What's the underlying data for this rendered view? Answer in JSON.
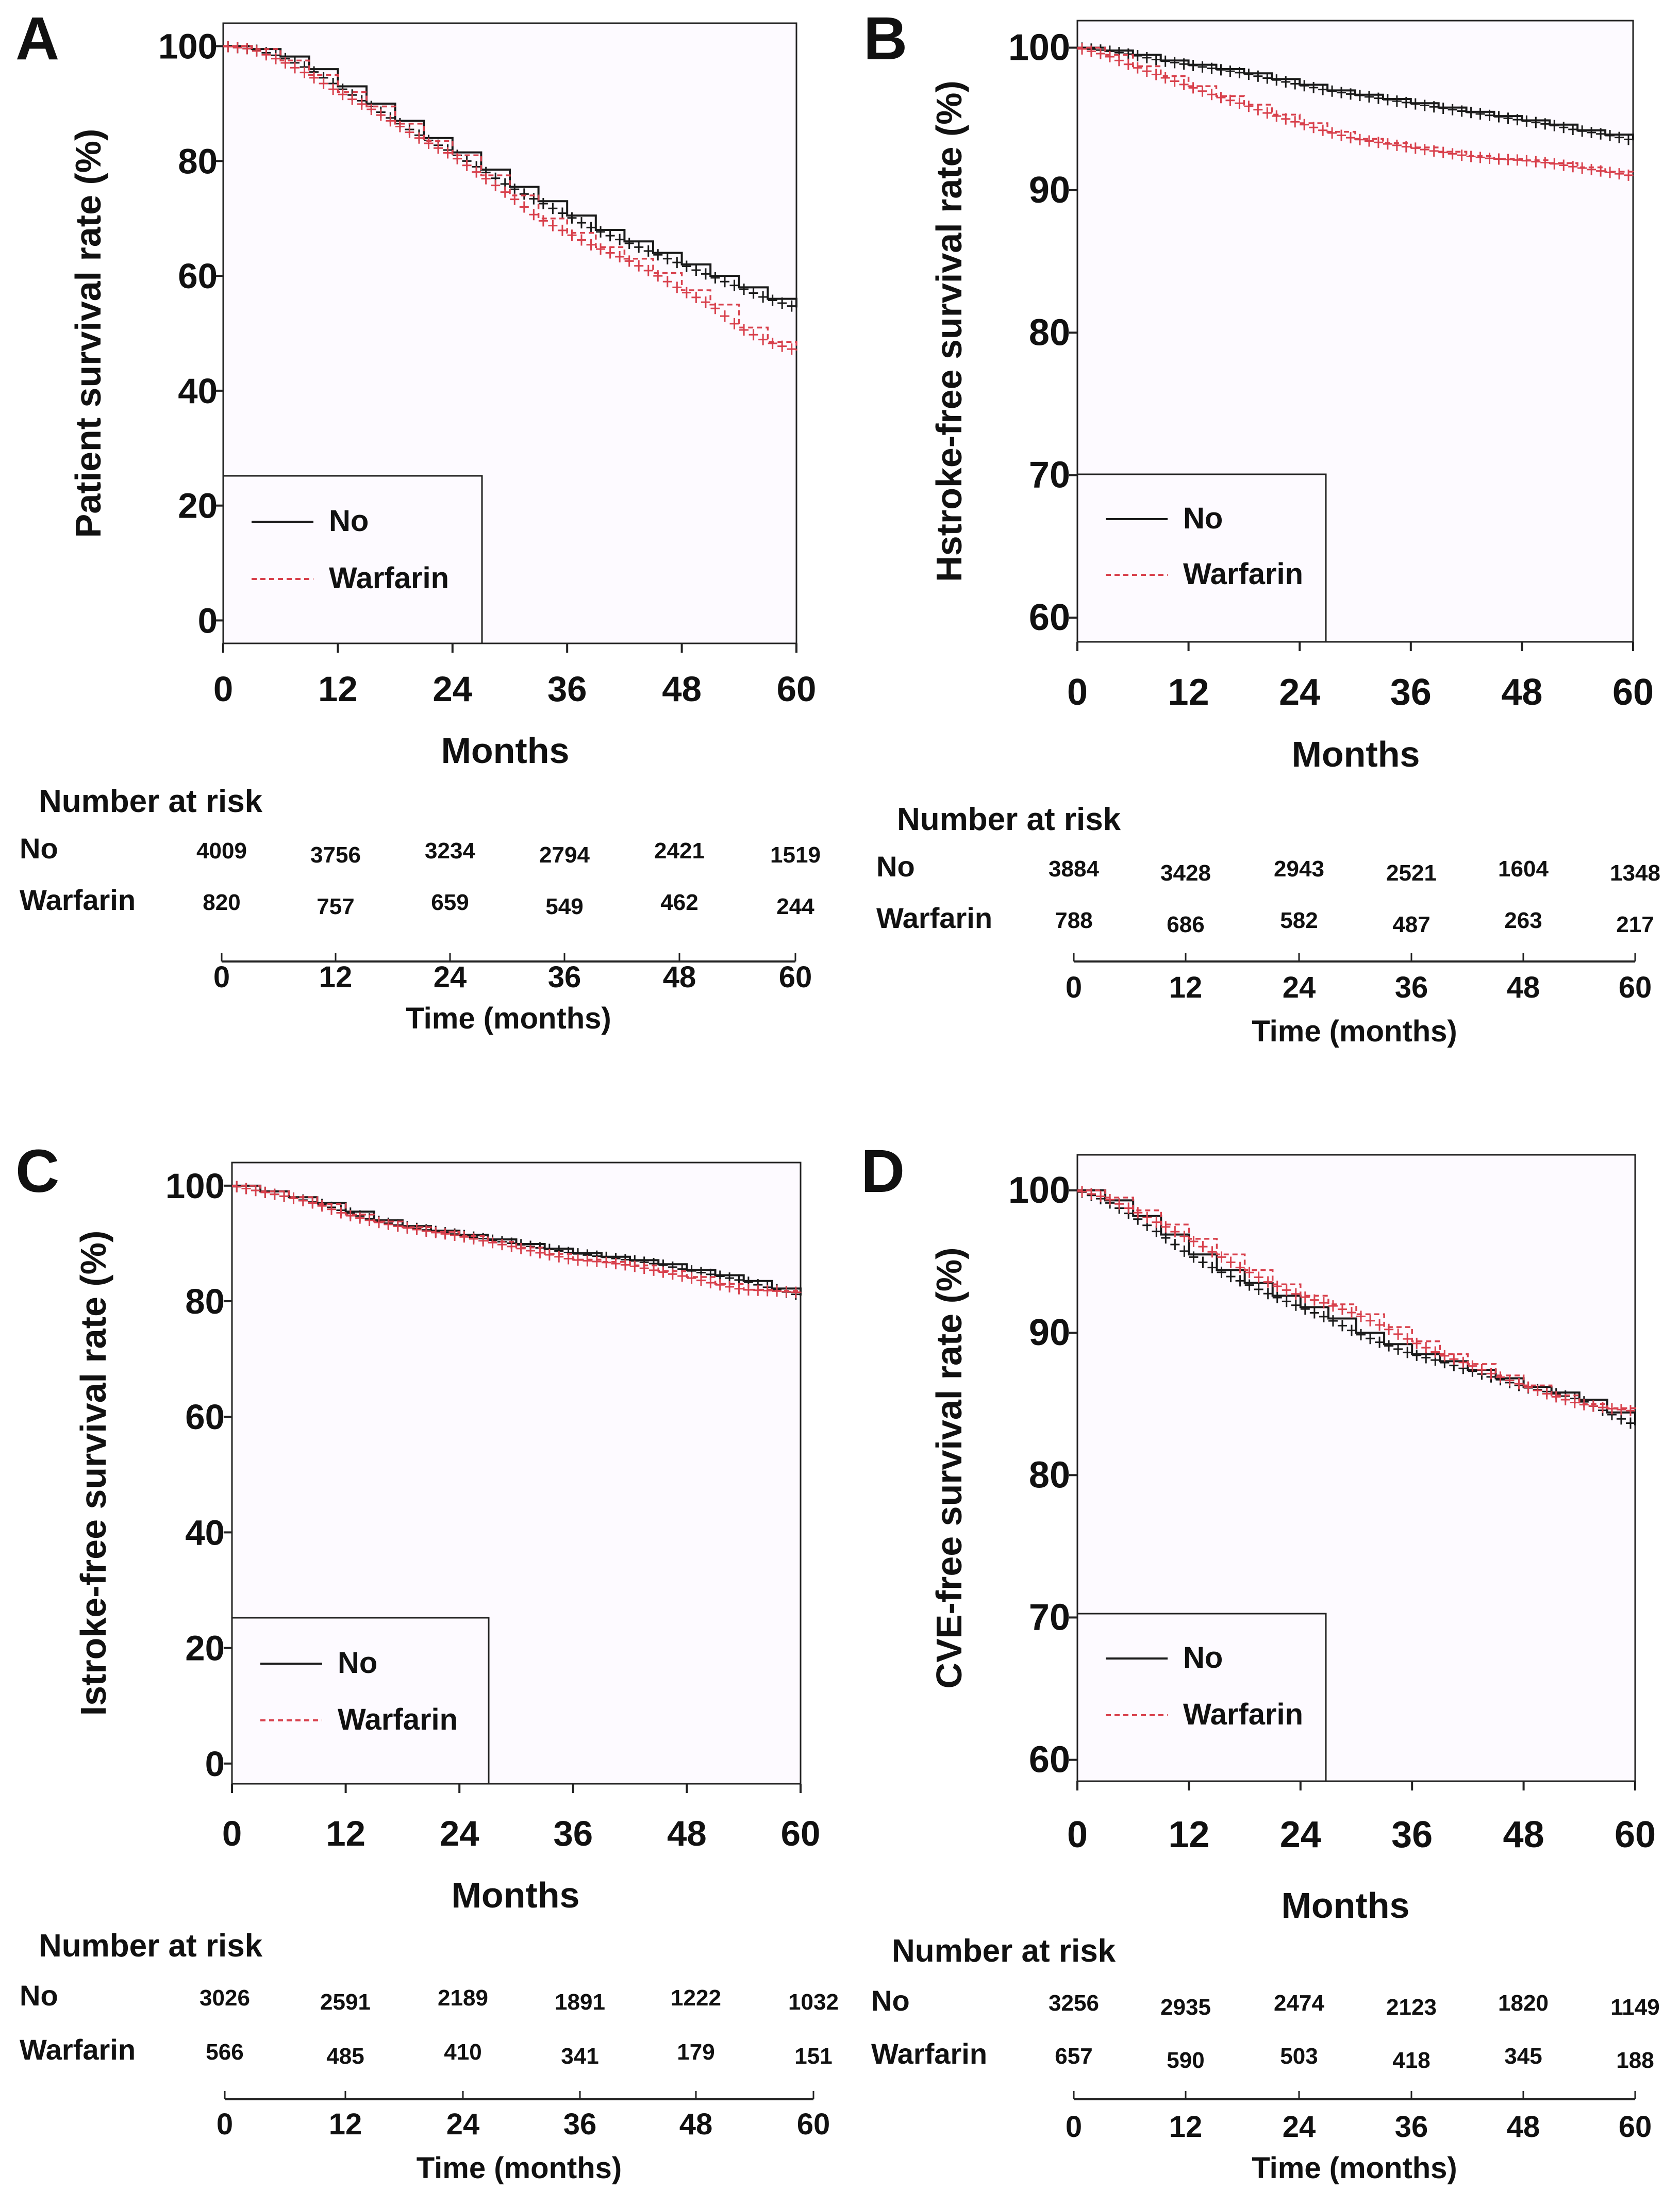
{
  "figure": {
    "colors": {
      "no": "#1a1a1a",
      "warfarin": "#d8404c",
      "plot_bg": "#fdfaff",
      "axis": "#222222"
    },
    "risk_title": "Number at risk",
    "risk_xlabel": "Time (months)"
  },
  "chart_data": [
    {
      "panel": "A",
      "type": "line",
      "title": "",
      "xlabel": "Months",
      "ylabel": "Patient survival rate (%)",
      "xlim": [
        0,
        60
      ],
      "ylim": [
        -4,
        104
      ],
      "xticks": [
        0,
        12,
        24,
        36,
        48,
        60
      ],
      "yticks": [
        0,
        20,
        40,
        60,
        80,
        100
      ],
      "legend": "bottom-left",
      "series": [
        {
          "name": "No",
          "style": "solid",
          "x": [
            0,
            3,
            6,
            9,
            12,
            15,
            18,
            21,
            24,
            27,
            30,
            33,
            36,
            39,
            42,
            45,
            48,
            51,
            54,
            57,
            60
          ],
          "values": [
            100,
            99.5,
            98.2,
            96,
            93,
            90,
            87,
            84,
            81.5,
            78.5,
            75.5,
            73,
            70.5,
            68,
            66,
            64,
            62,
            60,
            58,
            56,
            54.5
          ]
        },
        {
          "name": "Warfarin",
          "style": "dashed",
          "x": [
            0,
            3,
            6,
            9,
            12,
            15,
            18,
            21,
            24,
            27,
            30,
            33,
            36,
            39,
            42,
            45,
            48,
            51,
            54,
            57,
            60
          ],
          "values": [
            100,
            99.5,
            97.5,
            95,
            92,
            89.5,
            86.5,
            83.5,
            81,
            77.5,
            74,
            70,
            67.5,
            65,
            63,
            60.5,
            57.5,
            55,
            51,
            48.5,
            47
          ]
        }
      ],
      "risk_table": {
        "times": [
          "0",
          "12",
          "24",
          "36",
          "48",
          "60"
        ],
        "rows": [
          {
            "label": "No",
            "values": [
              "4009",
              "3756",
              "3234",
              "2794",
              "2421",
              "1519"
            ]
          },
          {
            "label": "Warfarin",
            "values": [
              "820",
              "757",
              "659",
              "549",
              "462",
              "244"
            ]
          }
        ]
      }
    },
    {
      "panel": "B",
      "type": "line",
      "title": "",
      "xlabel": "Months",
      "ylabel": "Hstroke-free survival rate (%)",
      "xlim": [
        0,
        60
      ],
      "ylim": [
        58.3,
        101.9
      ],
      "xticks": [
        0,
        12,
        24,
        36,
        48,
        60
      ],
      "yticks": [
        60,
        70,
        80,
        90,
        100
      ],
      "legend": "bottom-left",
      "series": [
        {
          "name": "No",
          "style": "solid",
          "x": [
            0,
            3,
            6,
            9,
            12,
            15,
            18,
            21,
            24,
            27,
            30,
            33,
            36,
            39,
            42,
            45,
            48,
            51,
            54,
            57,
            60
          ],
          "values": [
            100,
            99.8,
            99.5,
            99.1,
            98.8,
            98.5,
            98.2,
            97.8,
            97.4,
            97,
            96.7,
            96.4,
            96.1,
            95.8,
            95.5,
            95.2,
            94.9,
            94.6,
            94.2,
            93.9,
            93.5
          ]
        },
        {
          "name": "Warfarin",
          "style": "dashed",
          "x": [
            0,
            3,
            6,
            9,
            12,
            15,
            18,
            21,
            24,
            27,
            30,
            33,
            36,
            39,
            42,
            45,
            48,
            51,
            54,
            57,
            60
          ],
          "values": [
            100,
            99.5,
            98.7,
            98,
            97.3,
            96.6,
            96,
            95.3,
            94.7,
            94.1,
            93.6,
            93.3,
            93,
            92.7,
            92.4,
            92.2,
            92.1,
            91.9,
            91.6,
            91.3,
            91
          ]
        }
      ],
      "risk_table": {
        "times": [
          "0",
          "12",
          "24",
          "36",
          "48",
          "60"
        ],
        "rows": [
          {
            "label": "No",
            "values": [
              "3884",
              "3428",
              "2943",
              "2521",
              "1604",
              "1348"
            ]
          },
          {
            "label": "Warfarin",
            "values": [
              "788",
              "686",
              "582",
              "487",
              "263",
              "217"
            ]
          }
        ]
      }
    },
    {
      "panel": "C",
      "type": "line",
      "title": "",
      "xlabel": "Months",
      "ylabel": "Istroke-free survival rate (%)",
      "xlim": [
        0,
        60
      ],
      "ylim": [
        -3.5,
        104
      ],
      "xticks": [
        0,
        12,
        24,
        36,
        48,
        60
      ],
      "yticks": [
        0,
        20,
        40,
        60,
        80,
        100
      ],
      "legend": "bottom-left",
      "series": [
        {
          "name": "No",
          "style": "solid",
          "x": [
            0,
            3,
            6,
            9,
            12,
            15,
            18,
            21,
            24,
            27,
            30,
            33,
            36,
            39,
            42,
            45,
            48,
            51,
            54,
            57,
            60
          ],
          "values": [
            100,
            99,
            98,
            97,
            95.5,
            94,
            93,
            92.2,
            91.5,
            90.7,
            89.9,
            89.1,
            88.3,
            87.7,
            87.1,
            86.4,
            85.4,
            84.5,
            83.5,
            82.2,
            81
          ]
        },
        {
          "name": "Warfarin",
          "style": "dashed",
          "x": [
            0,
            3,
            6,
            9,
            12,
            15,
            18,
            21,
            24,
            27,
            30,
            33,
            36,
            39,
            42,
            45,
            48,
            51,
            54,
            57,
            60
          ],
          "values": [
            100,
            99,
            98,
            96.8,
            95,
            93.8,
            92.8,
            92,
            91.3,
            90.3,
            89.3,
            88.2,
            87.2,
            86.8,
            86.2,
            85.2,
            84.2,
            83,
            82,
            81.8,
            81.5
          ]
        }
      ],
      "risk_table": {
        "times": [
          "0",
          "12",
          "24",
          "36",
          "48",
          "60"
        ],
        "rows": [
          {
            "label": "No",
            "values": [
              "3026",
              "2591",
              "2189",
              "1891",
              "1222",
              "1032"
            ]
          },
          {
            "label": "Warfarin",
            "values": [
              "566",
              "485",
              "410",
              "341",
              "179",
              "151"
            ]
          }
        ]
      }
    },
    {
      "panel": "D",
      "type": "line",
      "title": "",
      "xlabel": "Months",
      "ylabel": "CVE-free survival rate (%)",
      "xlim": [
        0,
        60
      ],
      "ylim": [
        58.5,
        102.5
      ],
      "xticks": [
        0,
        12,
        24,
        36,
        48,
        60
      ],
      "yticks": [
        60,
        70,
        80,
        90,
        100
      ],
      "legend": "bottom-left",
      "series": [
        {
          "name": "No",
          "style": "solid",
          "x": [
            0,
            3,
            6,
            9,
            12,
            15,
            18,
            21,
            24,
            27,
            30,
            33,
            36,
            39,
            42,
            45,
            48,
            51,
            54,
            57,
            60
          ],
          "values": [
            100,
            99.3,
            98.2,
            96.9,
            95.5,
            94.4,
            93.5,
            92.6,
            91.8,
            91,
            90,
            89.2,
            88.5,
            88,
            87.4,
            86.8,
            86.2,
            85.8,
            85.3,
            84.4,
            83.5
          ]
        },
        {
          "name": "Warfarin",
          "style": "dashed",
          "x": [
            0,
            3,
            6,
            9,
            12,
            15,
            18,
            21,
            24,
            27,
            30,
            33,
            36,
            39,
            42,
            45,
            48,
            51,
            54,
            57,
            60
          ],
          "values": [
            100,
            99.5,
            98.6,
            97.6,
            96.6,
            95.5,
            94.4,
            93.4,
            92.6,
            92,
            91.3,
            90.4,
            89.4,
            88.5,
            87.8,
            87,
            86.3,
            85.6,
            85,
            84.7,
            84.5
          ]
        }
      ],
      "risk_table": {
        "times": [
          "0",
          "12",
          "24",
          "36",
          "48",
          "60"
        ],
        "rows": [
          {
            "label": "No",
            "values": [
              "3256",
              "2935",
              "2474",
              "2123",
              "1820",
              "1149"
            ]
          },
          {
            "label": "Warfarin",
            "values": [
              "657",
              "590",
              "503",
              "418",
              "345",
              "188"
            ]
          }
        ]
      }
    }
  ]
}
